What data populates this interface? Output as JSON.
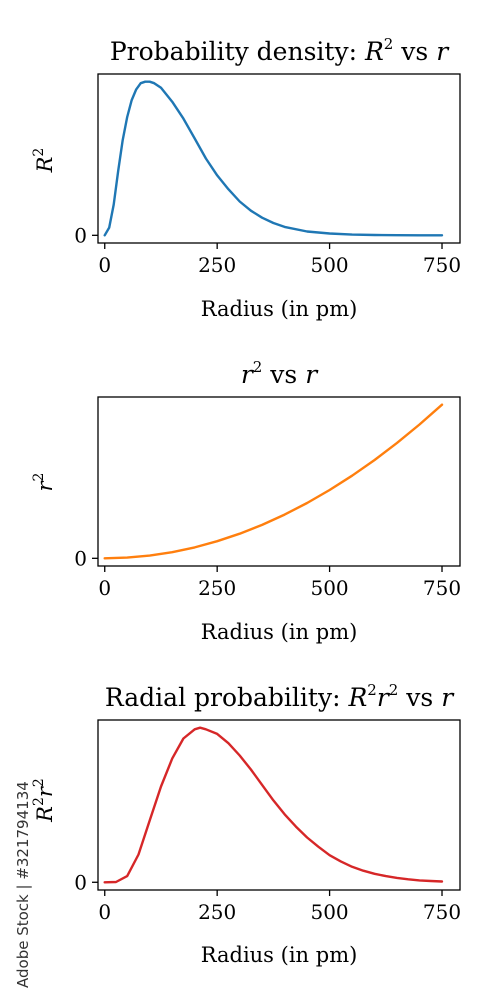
{
  "chart_data": [
    {
      "type": "line",
      "title": {
        "main": "Probability density: ",
        "sym": "R",
        "sup": "2",
        "tail": " vs ",
        "var": "r"
      },
      "xlabel": "Radius (in pm)",
      "ylabel": {
        "sym": "R",
        "sup": "2"
      },
      "xlim": [
        -15,
        790
      ],
      "ylim": [
        -0.05,
        1.05
      ],
      "xticks": [
        0,
        250,
        500,
        750
      ],
      "xtick_labels": [
        "0",
        "250",
        "500",
        "750"
      ],
      "yticks": [
        0
      ],
      "ytick_labels": [
        "0"
      ],
      "color": "#1f77b4",
      "series": [
        {
          "values": [
            [
              0,
              0
            ],
            [
              10,
              0.05
            ],
            [
              20,
              0.2
            ],
            [
              30,
              0.42
            ],
            [
              40,
              0.62
            ],
            [
              50,
              0.77
            ],
            [
              60,
              0.88
            ],
            [
              70,
              0.95
            ],
            [
              80,
              0.99
            ],
            [
              90,
              1.0
            ],
            [
              100,
              1.0
            ],
            [
              110,
              0.99
            ],
            [
              125,
              0.96
            ],
            [
              150,
              0.87
            ],
            [
              175,
              0.76
            ],
            [
              200,
              0.63
            ],
            [
              225,
              0.5
            ],
            [
              250,
              0.39
            ],
            [
              275,
              0.3
            ],
            [
              300,
              0.22
            ],
            [
              325,
              0.16
            ],
            [
              350,
              0.115
            ],
            [
              375,
              0.08
            ],
            [
              400,
              0.055
            ],
            [
              450,
              0.025
            ],
            [
              500,
              0.012
            ],
            [
              550,
              0.005
            ],
            [
              600,
              0.002
            ],
            [
              650,
              0.001
            ],
            [
              700,
              0.0003
            ],
            [
              750,
              0.0001
            ]
          ]
        }
      ]
    },
    {
      "type": "line",
      "title": {
        "main": "",
        "sym": "r",
        "sup": "2",
        "tail": " vs ",
        "var": "r"
      },
      "xlabel": "Radius (in pm)",
      "ylabel": {
        "sym": "r",
        "sup": "2"
      },
      "xlim": [
        -15,
        790
      ],
      "ylim": [
        -0.05,
        1.05
      ],
      "xticks": [
        0,
        250,
        500,
        750
      ],
      "xtick_labels": [
        "0",
        "250",
        "500",
        "750"
      ],
      "yticks": [
        0
      ],
      "ytick_labels": [
        "0"
      ],
      "color": "#ff7f0e",
      "series": [
        {
          "values": [
            [
              0,
              0
            ],
            [
              50,
              0.0044
            ],
            [
              100,
              0.0178
            ],
            [
              150,
              0.04
            ],
            [
              200,
              0.0711
            ],
            [
              250,
              0.1111
            ],
            [
              300,
              0.16
            ],
            [
              350,
              0.2178
            ],
            [
              400,
              0.2844
            ],
            [
              450,
              0.36
            ],
            [
              500,
              0.4444
            ],
            [
              550,
              0.5378
            ],
            [
              600,
              0.64
            ],
            [
              650,
              0.7511
            ],
            [
              700,
              0.8711
            ],
            [
              750,
              1.0
            ]
          ]
        }
      ]
    },
    {
      "type": "line",
      "title": {
        "main": "Radial probability: ",
        "sym": "R",
        "sup": "2",
        "sym2": "r",
        "sup2": "2",
        "tail": " vs ",
        "var": "r"
      },
      "xlabel": "Radius (in pm)",
      "ylabel": {
        "sym": "R",
        "sup": "2",
        "sym2": "r",
        "sup2": "2"
      },
      "xlim": [
        -15,
        790
      ],
      "ylim": [
        -0.05,
        1.05
      ],
      "xticks": [
        0,
        250,
        500,
        750
      ],
      "xtick_labels": [
        "0",
        "250",
        "500",
        "750"
      ],
      "yticks": [
        0
      ],
      "ytick_labels": [
        "0"
      ],
      "color": "#d62728",
      "series": [
        {
          "values": [
            [
              0,
              0
            ],
            [
              25,
              0.002
            ],
            [
              50,
              0.04
            ],
            [
              75,
              0.18
            ],
            [
              100,
              0.4
            ],
            [
              125,
              0.62
            ],
            [
              150,
              0.8
            ],
            [
              175,
              0.93
            ],
            [
              200,
              0.99
            ],
            [
              212,
              1.0
            ],
            [
              225,
              0.99
            ],
            [
              250,
              0.96
            ],
            [
              275,
              0.9
            ],
            [
              300,
              0.82
            ],
            [
              325,
              0.73
            ],
            [
              350,
              0.63
            ],
            [
              375,
              0.53
            ],
            [
              400,
              0.44
            ],
            [
              425,
              0.36
            ],
            [
              450,
              0.29
            ],
            [
              475,
              0.23
            ],
            [
              500,
              0.175
            ],
            [
              525,
              0.135
            ],
            [
              550,
              0.1
            ],
            [
              575,
              0.075
            ],
            [
              600,
              0.055
            ],
            [
              625,
              0.04
            ],
            [
              650,
              0.028
            ],
            [
              675,
              0.019
            ],
            [
              700,
              0.012
            ],
            [
              725,
              0.008
            ],
            [
              750,
              0.005
            ]
          ]
        }
      ]
    }
  ],
  "watermark": "Adobe Stock | #321794134"
}
